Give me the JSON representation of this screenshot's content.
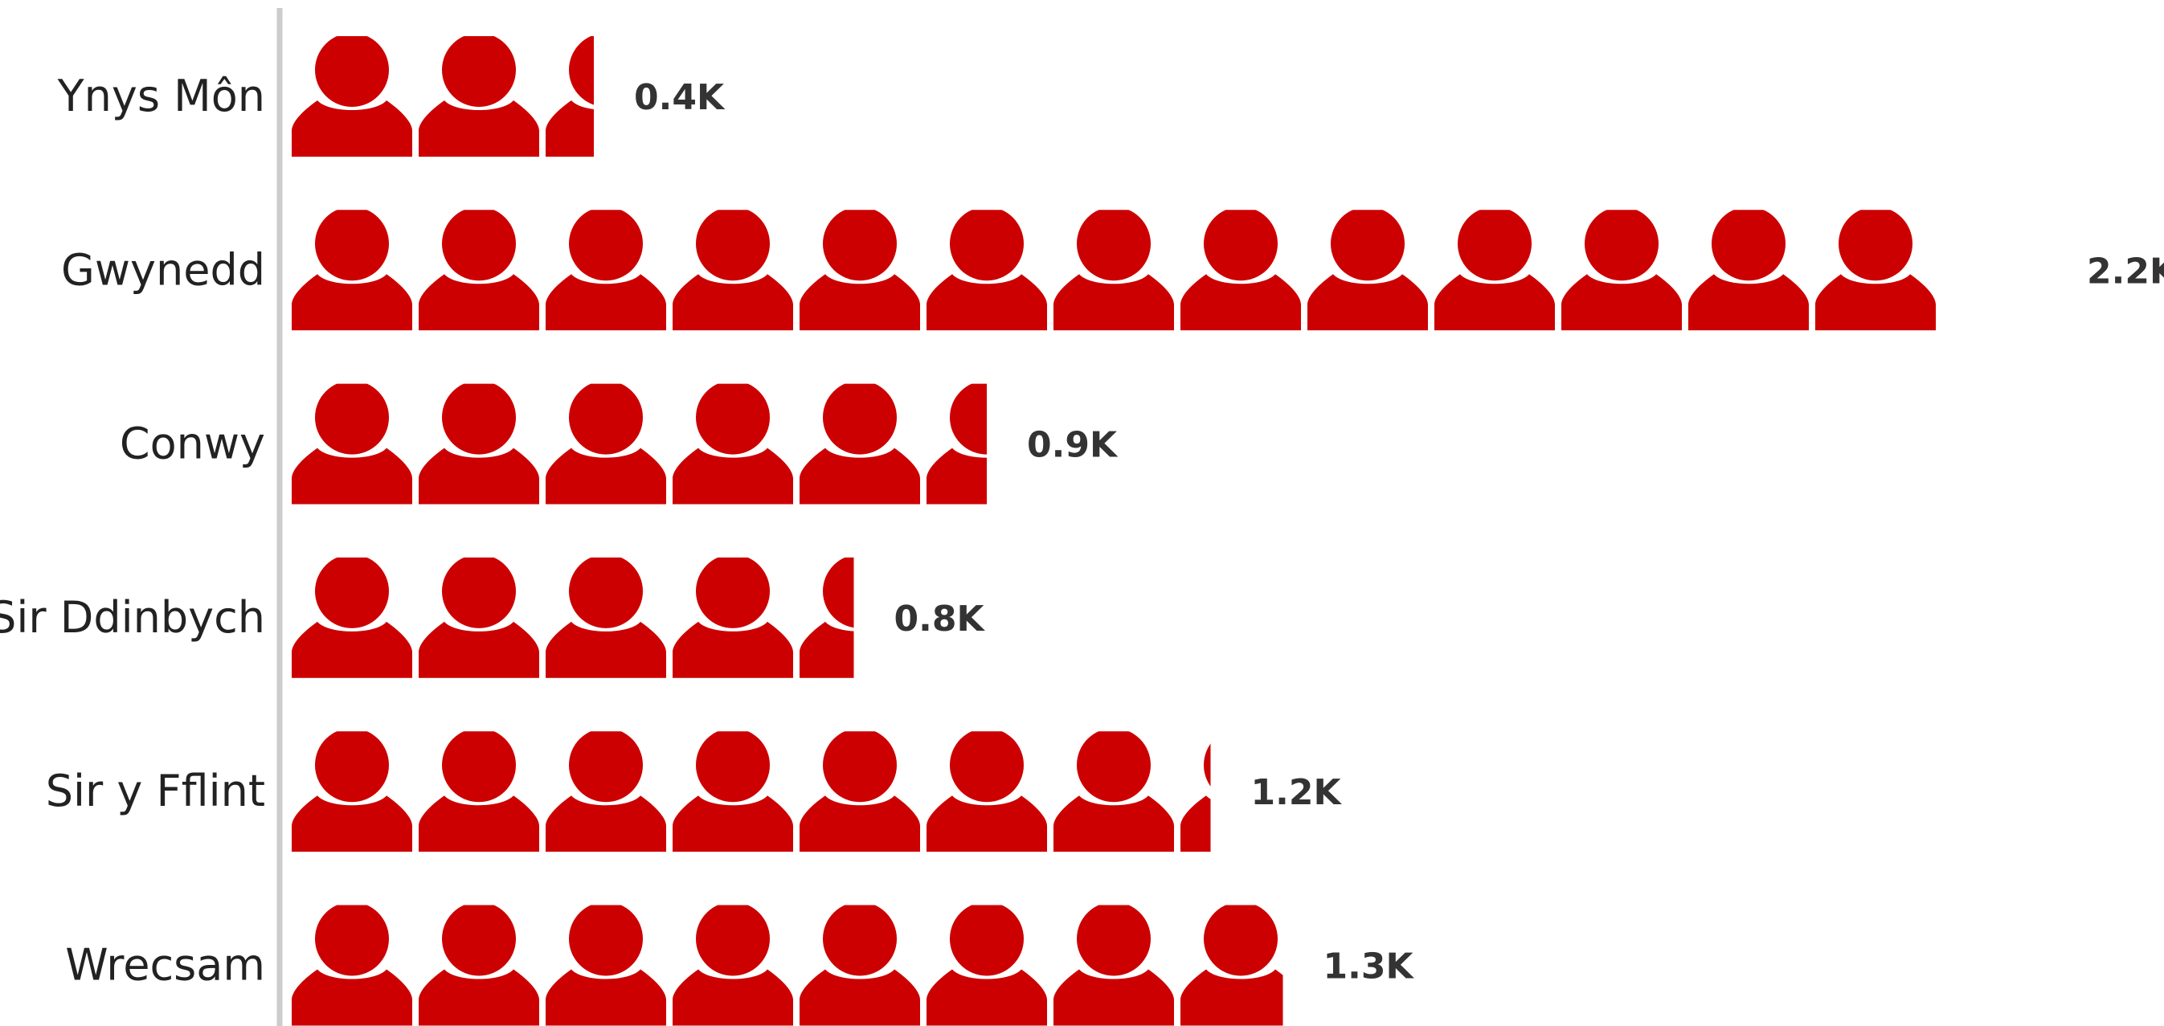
{
  "chart_data": {
    "type": "bar",
    "subtype": "pictograph",
    "icon": "person-icon",
    "unit_per_icon": 0.17,
    "categories": [
      "Ynys Môn",
      "Gwynedd",
      "Conwy",
      "Sir Ddinbych",
      "Sir y Fflint",
      "Wrecsam"
    ],
    "values": [
      0.4,
      2.2,
      0.9,
      0.8,
      1.2,
      1.3
    ],
    "icon_counts": [
      2.4,
      13,
      5.5,
      4.45,
      7.25,
      7.85
    ],
    "value_labels": [
      "0.4K",
      "2.2K",
      "0.9K",
      "0.8K",
      "1.2K",
      "1.3K"
    ],
    "colors": {
      "icon": "#cc0000",
      "axis": "#cccccc"
    }
  }
}
